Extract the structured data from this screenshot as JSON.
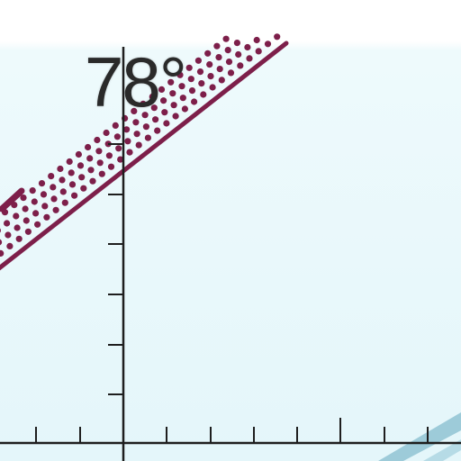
{
  "reading": {
    "temperature": "78°"
  },
  "colors": {
    "sky_top": "#ffffff",
    "sky_bottom": "#e6f7fb",
    "axis": "#1e1e1e",
    "trend": "#7d1f4a",
    "dots": "#7d1f4a",
    "water": "#8ec3d6"
  }
}
